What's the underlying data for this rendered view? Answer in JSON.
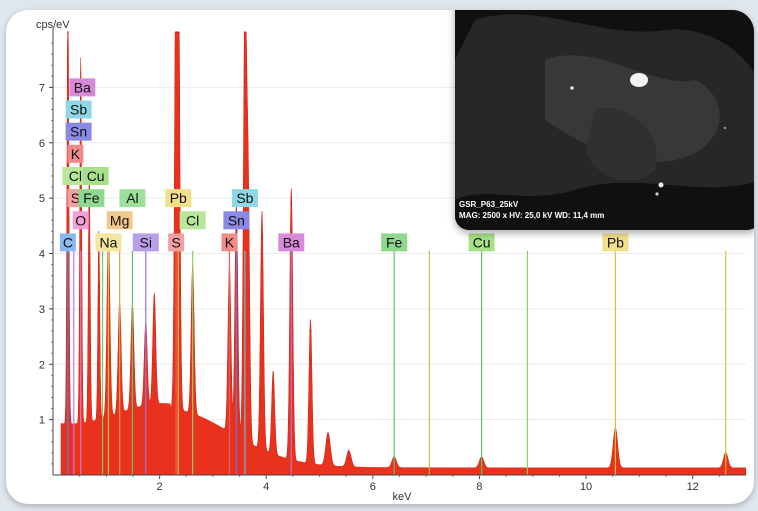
{
  "colors": {
    "background": "#dfe6ec",
    "panel": "#ffffff",
    "spectrum_fill": "#e8321e",
    "label_boxes": {
      "Ba": "#d889d8",
      "Sb": "#8fd6e6",
      "Sn": "#8a8ae6",
      "K": "#f08a8a",
      "Cl": "#b8e69a",
      "Cu": "#a6e08a",
      "S": "#f5a0a0",
      "Fe": "#8fd88f",
      "Al": "#9ce09c",
      "Pb": "#f2e08a",
      "O": "#f5a0d8",
      "Mg": "#f2c98a",
      "C": "#8ab8f0",
      "Na": "#f2e6a0",
      "Si": "#b8a0e6"
    }
  },
  "chart_data": {
    "type": "area",
    "ylabel": "cps/eV",
    "xlabel": "keV",
    "xlim": [
      0,
      13
    ],
    "ylim": [
      0,
      8
    ],
    "xticks": [
      2,
      4,
      6,
      8,
      10,
      12
    ],
    "yticks": [
      1,
      2,
      3,
      4,
      5,
      6,
      7
    ],
    "peaks": [
      {
        "x": 0.28,
        "y": 8.0
      },
      {
        "x": 0.52,
        "y": 6.6
      },
      {
        "x": 0.68,
        "y": 4.5
      },
      {
        "x": 0.86,
        "y": 3.4
      },
      {
        "x": 1.04,
        "y": 3.3
      },
      {
        "x": 1.25,
        "y": 2.0
      },
      {
        "x": 1.49,
        "y": 1.9
      },
      {
        "x": 1.74,
        "y": 1.5
      },
      {
        "x": 1.9,
        "y": 2.0
      },
      {
        "x": 2.31,
        "y": 8.0
      },
      {
        "x": 2.35,
        "y": 8.0
      },
      {
        "x": 2.62,
        "y": 2.7
      },
      {
        "x": 3.31,
        "y": 3.0
      },
      {
        "x": 3.44,
        "y": 4.2
      },
      {
        "x": 3.6,
        "y": 8.0
      },
      {
        "x": 3.66,
        "y": 4.6
      },
      {
        "x": 3.92,
        "y": 4.3
      },
      {
        "x": 4.13,
        "y": 1.5
      },
      {
        "x": 4.47,
        "y": 4.9
      },
      {
        "x": 4.83,
        "y": 2.6
      },
      {
        "x": 5.16,
        "y": 0.6
      },
      {
        "x": 5.55,
        "y": 0.3
      },
      {
        "x": 6.4,
        "y": 0.2
      },
      {
        "x": 8.04,
        "y": 0.2
      },
      {
        "x": 10.55,
        "y": 0.72
      },
      {
        "x": 12.62,
        "y": 0.28
      }
    ],
    "markers": [
      {
        "x": 0.28,
        "color": "#4a7fe0"
      },
      {
        "x": 0.39,
        "color": "#c87ae0"
      },
      {
        "x": 0.52,
        "color": "#e07ab8"
      },
      {
        "x": 0.93,
        "color": "#7ac860"
      },
      {
        "x": 1.04,
        "color": "#e0c040"
      },
      {
        "x": 1.25,
        "color": "#e0a040"
      },
      {
        "x": 1.49,
        "color": "#60c860"
      },
      {
        "x": 1.74,
        "color": "#a070e0"
      },
      {
        "x": 2.31,
        "color": "#e06060"
      },
      {
        "x": 2.35,
        "color": "#e0c040"
      },
      {
        "x": 2.62,
        "color": "#90d060"
      },
      {
        "x": 3.31,
        "color": "#e06060"
      },
      {
        "x": 3.44,
        "color": "#7070e0"
      },
      {
        "x": 3.6,
        "color": "#60c0e0"
      },
      {
        "x": 4.47,
        "color": "#c070c0"
      },
      {
        "x": 6.4,
        "color": "#60c860"
      },
      {
        "x": 7.06,
        "color": "#c8c040"
      },
      {
        "x": 8.04,
        "color": "#60c860"
      },
      {
        "x": 8.9,
        "color": "#90d060"
      },
      {
        "x": 10.55,
        "color": "#e0c040"
      },
      {
        "x": 12.62,
        "color": "#e0c040"
      }
    ],
    "element_labels": [
      {
        "text": "Ba",
        "x": 0.55,
        "y": 7.0
      },
      {
        "text": "Sb",
        "x": 0.48,
        "y": 6.6
      },
      {
        "text": "Sn",
        "x": 0.48,
        "y": 6.2
      },
      {
        "text": "K",
        "x": 0.42,
        "y": 5.8
      },
      {
        "text": "Cl",
        "x": 0.42,
        "y": 5.4
      },
      {
        "text": "Cu",
        "x": 0.8,
        "y": 5.4
      },
      {
        "text": "S",
        "x": 0.42,
        "y": 5.0
      },
      {
        "text": "Fe",
        "x": 0.72,
        "y": 5.0
      },
      {
        "text": "Al",
        "x": 1.49,
        "y": 5.0
      },
      {
        "text": "Pb",
        "x": 2.35,
        "y": 5.0
      },
      {
        "text": "Sb",
        "x": 3.6,
        "y": 5.0
      },
      {
        "text": "O",
        "x": 0.52,
        "y": 4.6
      },
      {
        "text": "Mg",
        "x": 1.25,
        "y": 4.6
      },
      {
        "text": "Cl",
        "x": 2.62,
        "y": 4.6
      },
      {
        "text": "Sn",
        "x": 3.44,
        "y": 4.6
      },
      {
        "text": "C",
        "x": 0.28,
        "y": 4.2
      },
      {
        "text": "Na",
        "x": 1.04,
        "y": 4.2
      },
      {
        "text": "Si",
        "x": 1.74,
        "y": 4.2
      },
      {
        "text": "S",
        "x": 2.31,
        "y": 4.2
      },
      {
        "text": "K",
        "x": 3.31,
        "y": 4.2
      },
      {
        "text": "Ba",
        "x": 4.47,
        "y": 4.2
      },
      {
        "text": "Fe",
        "x": 6.4,
        "y": 4.2
      },
      {
        "text": "Cu",
        "x": 8.04,
        "y": 4.2
      },
      {
        "text": "Pb",
        "x": 10.55,
        "y": 4.2
      }
    ]
  },
  "sem_image": {
    "caption_line1": "GSR_P63_25kV",
    "caption_line2": "MAG: 2500 x  HV: 25,0 kV  WD: 11,4 mm"
  }
}
